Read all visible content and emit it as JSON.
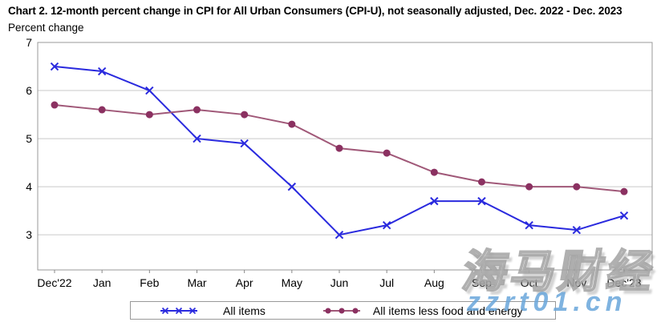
{
  "title": "Chart 2. 12-month percent change in CPI for All Urban Consumers (CPI-U), not seasonally adjusted, Dec. 2022 - Dec. 2023",
  "ylabel": "Percent change",
  "chart_data": {
    "type": "line",
    "title": "Chart 2. 12-month percent change in CPI for All Urban Consumers (CPI-U), not seasonally adjusted, Dec. 2022 - Dec. 2023",
    "ylabel": "Percent change",
    "categories": [
      "Dec'22",
      "Jan",
      "Feb",
      "Mar",
      "Apr",
      "May",
      "Jun",
      "Jul",
      "Aug",
      "Sep",
      "Oct",
      "Nov",
      "Dec'23"
    ],
    "series": [
      {
        "name": "All items",
        "marker": "x",
        "color": "#2a2ade",
        "marker_color": "#2a2ade",
        "values": [
          6.5,
          6.4,
          6.0,
          5.0,
          4.9,
          4.0,
          3.0,
          3.2,
          3.7,
          3.7,
          3.2,
          3.1,
          3.4
        ]
      },
      {
        "name": "All items less food and energy",
        "marker": "circle",
        "color": "#a05878",
        "marker_color": "#8b3161",
        "values": [
          5.7,
          5.6,
          5.5,
          5.6,
          5.5,
          5.3,
          4.8,
          4.7,
          4.3,
          4.1,
          4.0,
          4.0,
          3.9
        ]
      }
    ],
    "y_ticks": [
      7,
      6,
      5,
      4,
      3
    ],
    "ylim": [
      2.27,
      7
    ],
    "grid": "horizontal",
    "legend_position": "bottom"
  },
  "colors": {
    "grid": "#c9c9c9",
    "plot_border": "#9a9a9a",
    "tick": "#888888",
    "text": "#000000"
  },
  "watermark": {
    "cjk_text": "海马财经",
    "domain_text": "zzrt01.cn"
  }
}
